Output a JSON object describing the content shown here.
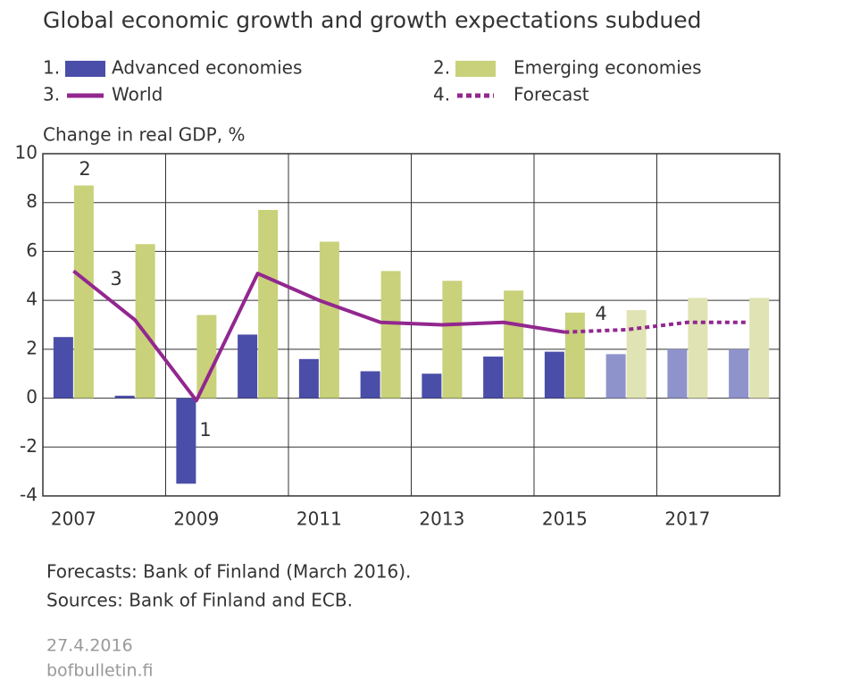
{
  "chart_data": {
    "type": "bar",
    "title": "Global economic growth and growth expectations subdued",
    "ylabel": "Change in real GDP, %",
    "categories": [
      "2007",
      null,
      "2009",
      null,
      "2011",
      null,
      "2013",
      null,
      "2015",
      null,
      "2017",
      null
    ],
    "series": [
      {
        "name": "Advanced economies",
        "number": "1.",
        "tag": "1",
        "kind": "bar",
        "color": "#4a4ea8",
        "colors": [
          "#4a4ea8",
          "#4a4ea8",
          "#4a4ea8",
          "#4a4ea8",
          "#4a4ea8",
          "#4a4ea8",
          "#4a4ea8",
          "#4a4ea8",
          "#4a4ea8",
          "#8f93cc",
          "#8f93cc",
          "#8f93cc"
        ],
        "values": [
          2.5,
          0.1,
          -3.5,
          2.6,
          1.6,
          1.1,
          1.0,
          1.7,
          1.9,
          1.8,
          2.0,
          2.0
        ]
      },
      {
        "name": "Emerging economies",
        "number": "2.",
        "tag": "2",
        "kind": "bar",
        "color": "#c9d17a",
        "colors": [
          "#c9d17a",
          "#c9d17a",
          "#c9d17a",
          "#c9d17a",
          "#c9d17a",
          "#c9d17a",
          "#c9d17a",
          "#c9d17a",
          "#c9d17a",
          "#e0e3b3",
          "#e0e3b3",
          "#e0e3b3"
        ],
        "values": [
          8.7,
          6.3,
          3.4,
          7.7,
          6.4,
          5.2,
          4.8,
          4.4,
          3.5,
          3.6,
          4.1,
          4.1
        ]
      },
      {
        "name": "World",
        "number": "3.",
        "tag": "3",
        "kind": "line",
        "color": "#92278f",
        "values": [
          5.2,
          3.2,
          -0.1,
          5.1,
          4.0,
          3.1,
          3.0,
          3.1,
          2.7,
          null,
          null,
          null
        ]
      },
      {
        "name": "Forecast",
        "number": "4.",
        "tag": "4",
        "kind": "dashed",
        "color": "#92278f",
        "values": [
          null,
          null,
          null,
          null,
          null,
          null,
          null,
          null,
          2.7,
          2.8,
          3.1,
          3.1
        ]
      }
    ],
    "ylim": [
      -4,
      10
    ],
    "yticks": [
      -4,
      -2,
      0,
      2,
      4,
      6,
      8,
      10
    ],
    "grid": true,
    "notes": [
      "Forecasts: Bank of Finland (March 2016).",
      "Sources: Bank of Finland and ECB."
    ],
    "date": "27.4.2016",
    "site": "bofbulletin.fi"
  }
}
